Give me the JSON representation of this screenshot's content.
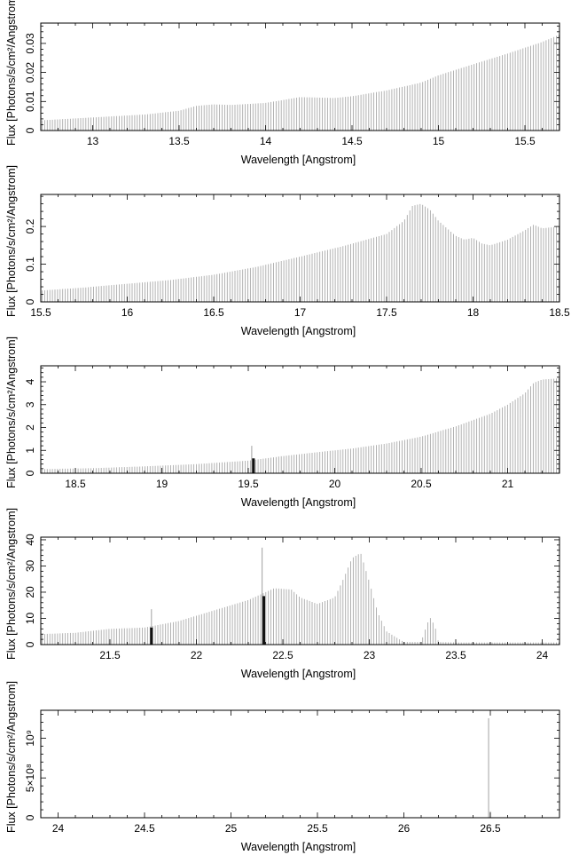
{
  "chart_data": [
    {
      "type": "line",
      "xlabel": "Wavelength [Angstrom]",
      "ylabel": "Flux [Photons/s/cm²/Angstrom]",
      "xlim": [
        12.7,
        15.7
      ],
      "ylim": [
        0,
        0.037
      ],
      "xticks": [
        13,
        13.5,
        14,
        14.5,
        15,
        15.5
      ],
      "xtick_labels": [
        "13",
        "13.5",
        "14",
        "14.5",
        "15",
        "15.5"
      ],
      "yticks": [
        0,
        0.01,
        0.02,
        0.03
      ],
      "ytick_labels": [
        "0",
        "0.01",
        "0.02",
        "0.03"
      ],
      "series": [
        {
          "x": [
            12.7,
            13.0,
            13.3,
            13.5,
            13.6,
            13.7,
            13.8,
            14.0,
            14.1,
            14.2,
            14.4,
            14.5,
            14.7,
            14.9,
            15.0,
            15.2,
            15.4,
            15.6,
            15.7
          ],
          "y": [
            0.0035,
            0.0045,
            0.0055,
            0.0068,
            0.0085,
            0.009,
            0.0088,
            0.0095,
            0.0105,
            0.0115,
            0.0112,
            0.0118,
            0.0138,
            0.0165,
            0.019,
            0.0228,
            0.0265,
            0.0305,
            0.033
          ]
        }
      ],
      "spikes": []
    },
    {
      "type": "line",
      "xlabel": "Wavelength [Angstrom]",
      "ylabel": "Flux [Photons/s/cm²/Angstrom]",
      "xlim": [
        15.5,
        18.5
      ],
      "ylim": [
        0,
        0.285
      ],
      "xticks": [
        15.5,
        16,
        16.5,
        17,
        17.5,
        18,
        18.5
      ],
      "xtick_labels": [
        "15.5",
        "16",
        "16.5",
        "17",
        "17.5",
        "18",
        "18.5"
      ],
      "yticks": [
        0,
        0.1,
        0.2
      ],
      "ytick_labels": [
        "0",
        "0.1",
        "0.2"
      ],
      "series": [
        {
          "x": [
            15.5,
            15.75,
            16.0,
            16.25,
            16.5,
            16.75,
            17.0,
            17.25,
            17.5,
            17.6,
            17.65,
            17.7,
            17.75,
            17.8,
            17.85,
            17.9,
            17.95,
            18.0,
            18.05,
            18.1,
            18.2,
            18.3,
            18.35,
            18.4,
            18.5
          ],
          "y": [
            0.03,
            0.038,
            0.048,
            0.058,
            0.072,
            0.093,
            0.12,
            0.148,
            0.18,
            0.215,
            0.255,
            0.26,
            0.245,
            0.215,
            0.195,
            0.175,
            0.165,
            0.17,
            0.155,
            0.15,
            0.165,
            0.19,
            0.205,
            0.195,
            0.2
          ]
        }
      ],
      "spikes": []
    },
    {
      "type": "line",
      "xlabel": "Wavelength [Angstrom]",
      "ylabel": "Flux [Photons/s/cm²/Angstrom]",
      "xlim": [
        18.3,
        21.3
      ],
      "ylim": [
        0,
        4.7
      ],
      "xticks": [
        18.5,
        19,
        19.5,
        20,
        20.5,
        21
      ],
      "xtick_labels": [
        "18.5",
        "19",
        "19.5",
        "20",
        "20.5",
        "21"
      ],
      "yticks": [
        0,
        1,
        2,
        3,
        4
      ],
      "ytick_labels": [
        "0",
        "1",
        "2",
        "3",
        "4"
      ],
      "series": [
        {
          "x": [
            18.3,
            18.6,
            18.9,
            19.2,
            19.5,
            19.7,
            19.9,
            20.1,
            20.3,
            20.5,
            20.7,
            20.9,
            21.0,
            21.1,
            21.15,
            21.2,
            21.3
          ],
          "y": [
            0.18,
            0.22,
            0.3,
            0.4,
            0.55,
            0.75,
            0.92,
            1.08,
            1.3,
            1.6,
            2.05,
            2.6,
            3.0,
            3.5,
            3.95,
            4.1,
            4.15
          ]
        }
      ],
      "spikes": [
        {
          "x": 19.52,
          "y": 1.2
        }
      ],
      "markers": [
        {
          "x": 19.53,
          "y": 0.65
        }
      ]
    },
    {
      "type": "line",
      "xlabel": "Wavelength [Angstrom]",
      "ylabel": "Flux [Photons/s/cm²/Angstrom]",
      "xlim": [
        21.1,
        24.1
      ],
      "ylim": [
        0,
        41
      ],
      "xticks": [
        21.5,
        22,
        22.5,
        23,
        23.5,
        24
      ],
      "xtick_labels": [
        "21.5",
        "22",
        "22.5",
        "23",
        "23.5",
        "24"
      ],
      "yticks": [
        0,
        10,
        20,
        30,
        40
      ],
      "ytick_labels": [
        "0",
        "10",
        "20",
        "30",
        "40"
      ],
      "series": [
        {
          "x": [
            21.1,
            21.3,
            21.5,
            21.7,
            21.9,
            22.1,
            22.3,
            22.45,
            22.55,
            22.6,
            22.7,
            22.8,
            22.85,
            22.9,
            22.95,
            23.0,
            23.05,
            23.1,
            23.2,
            23.3,
            23.33,
            23.35,
            23.38,
            23.4,
            23.5,
            23.7,
            24.1
          ],
          "y": [
            4,
            4.5,
            6,
            6.5,
            9,
            13,
            17,
            21.5,
            21,
            18,
            15.5,
            18,
            25,
            33,
            35,
            24,
            12,
            5,
            1,
            1,
            7,
            10.5,
            7,
            1,
            0.8,
            0.8,
            0.8
          ]
        }
      ],
      "spikes": [
        {
          "x": 21.74,
          "y": 13.5
        },
        {
          "x": 22.38,
          "y": 37
        }
      ],
      "markers": [
        {
          "x": 21.74,
          "y": 6.5
        },
        {
          "x": 22.39,
          "y": 18.5
        }
      ]
    },
    {
      "type": "line",
      "xlabel": "Wavelength [Angstrom]",
      "ylabel": "Flux [Photons/s/cm²/Angstrom]",
      "xlim": [
        23.9,
        26.9
      ],
      "ylim": [
        0,
        1350000000
      ],
      "xticks": [
        24,
        24.5,
        25,
        25.5,
        26,
        26.5
      ],
      "xtick_labels": [
        "24",
        "24.5",
        "25",
        "25.5",
        "26",
        "26.5"
      ],
      "yticks": [
        0,
        500000000,
        1000000000
      ],
      "ytick_labels": [
        "0",
        "5×10⁸",
        "10⁹"
      ],
      "series": [
        {
          "x": [
            23.9,
            26.48,
            26.49,
            26.9
          ],
          "y": [
            0,
            0,
            0,
            0
          ]
        }
      ],
      "spikes": [
        {
          "x": 26.49,
          "y": 1250000000
        },
        {
          "x": 26.5,
          "y": 80000000
        }
      ]
    }
  ]
}
